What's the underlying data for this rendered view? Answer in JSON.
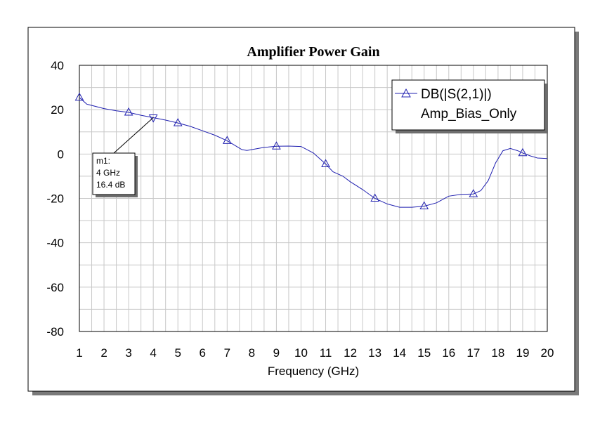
{
  "chart_data": {
    "type": "line",
    "title": "Amplifier Power Gain",
    "xlabel": "Frequency (GHz)",
    "ylabel": "",
    "xlim": [
      1,
      20
    ],
    "ylim": [
      -80,
      40
    ],
    "x_ticks": [
      "1",
      "2",
      "3",
      "4",
      "5",
      "6",
      "7",
      "8",
      "9",
      "10",
      "11",
      "12",
      "13",
      "14",
      "15",
      "16",
      "17",
      "18",
      "19",
      "20"
    ],
    "y_ticks": [
      "40",
      "20",
      "0",
      "-20",
      "-40",
      "-60",
      "-80"
    ],
    "grid": true,
    "legend_placement": "top-right",
    "series": [
      {
        "name": "DB(|S(2,1)|)",
        "subname": "Amp_Bias_Only",
        "color": "#2020b0",
        "marker": "triangle",
        "x": [
          1,
          1.3,
          2,
          2.5,
          3,
          3.5,
          4,
          4.5,
          5,
          5.5,
          6,
          6.5,
          7,
          7.3,
          7.6,
          7.8,
          8,
          8.5,
          9,
          9.5,
          10,
          10.5,
          11,
          11.3,
          11.7,
          12,
          12.5,
          13,
          13.5,
          14,
          14.5,
          15,
          15.5,
          16,
          16.5,
          17,
          17.3,
          17.6,
          17.9,
          18.2,
          18.5,
          18.8,
          19,
          19.3,
          19.6,
          20
        ],
        "y": [
          25.5,
          22.5,
          20.5,
          19.5,
          18.8,
          17.5,
          16.4,
          15.3,
          14,
          12.5,
          10.5,
          8.5,
          6,
          4,
          2,
          1.6,
          2,
          3,
          3.5,
          3.6,
          3.4,
          0.5,
          -4.5,
          -8,
          -10,
          -12.5,
          -16,
          -20,
          -22.5,
          -24,
          -24,
          -23.5,
          -22,
          -19,
          -18.2,
          -18,
          -16.5,
          -12,
          -4,
          1.5,
          2.5,
          1.5,
          0.5,
          -0.8,
          -1.8,
          -2
        ]
      }
    ],
    "markers_x": [
      1,
      3,
      5,
      7,
      9,
      11,
      13,
      15,
      17,
      19
    ],
    "markers_y": [
      25.5,
      18.8,
      14,
      6,
      3.5,
      -4.5,
      -20,
      -23.5,
      -18,
      0.5
    ],
    "annotation": {
      "x": 4,
      "y": 16.4,
      "lines": [
        "m1:",
        "4 GHz",
        "16.4 dB"
      ]
    }
  }
}
